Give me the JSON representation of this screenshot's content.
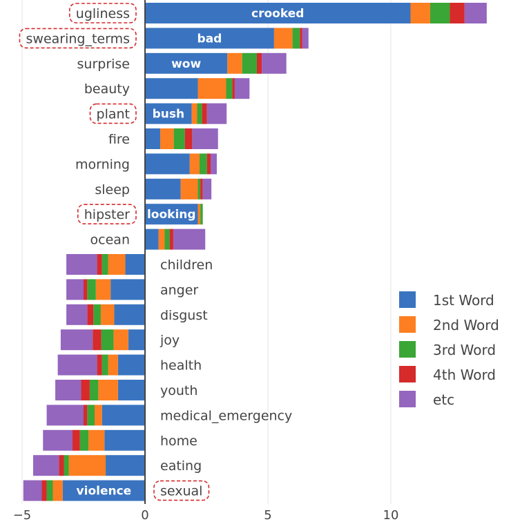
{
  "chart_data": {
    "type": "bar",
    "orientation": "horizontal",
    "stacked": true,
    "xlim": [
      -5,
      15
    ],
    "xticks": [
      "−5",
      "0",
      "5",
      "10"
    ],
    "xtick_values": [
      -5,
      0,
      5,
      10
    ],
    "grid": "vertical",
    "legend_position": "right",
    "categories": [
      "ugliness",
      "swearing_terms",
      "surprise",
      "beauty",
      "plant",
      "fire",
      "morning",
      "sleep",
      "hipster",
      "ocean",
      "children",
      "anger",
      "disgust",
      "joy",
      "health",
      "youth",
      "medical_emergency",
      "home",
      "eating",
      "sexual"
    ],
    "highlighted_categories": [
      "ugliness",
      "swearing_terms",
      "plant",
      "hipster",
      "sexual"
    ],
    "series": [
      {
        "name": "1st Word",
        "color": "#3a74c0",
        "values": [
          10.8,
          5.25,
          3.35,
          2.15,
          1.9,
          0.62,
          1.82,
          1.45,
          2.15,
          0.55,
          -0.8,
          -1.4,
          -1.25,
          -0.68,
          -1.1,
          -1.1,
          -1.75,
          -1.65,
          -1.6,
          -3.35
        ]
      },
      {
        "name": "2nd Word",
        "color": "#fd7f21",
        "values": [
          0.8,
          0.75,
          0.6,
          1.15,
          0.22,
          0.55,
          0.4,
          0.7,
          0.1,
          0.25,
          -0.7,
          -0.6,
          -0.55,
          -0.6,
          -0.4,
          -0.8,
          -0.3,
          -0.65,
          -1.5,
          -0.4
        ]
      },
      {
        "name": "3rd Word",
        "color": "#39a636",
        "values": [
          0.8,
          0.3,
          0.6,
          0.25,
          0.2,
          0.45,
          0.3,
          0.1,
          0.1,
          0.2,
          -0.25,
          -0.35,
          -0.3,
          -0.5,
          -0.25,
          -0.35,
          -0.3,
          -0.35,
          -0.2,
          -0.25
        ]
      },
      {
        "name": "4th Word",
        "color": "#d62a2b",
        "values": [
          0.6,
          0.1,
          0.2,
          0.1,
          0.2,
          0.3,
          0.15,
          0.1,
          0.0,
          0.15,
          -0.2,
          -0.15,
          -0.25,
          -0.35,
          -0.2,
          -0.35,
          -0.15,
          -0.3,
          -0.2,
          -0.2
        ]
      },
      {
        "name": "etc",
        "color": "#9466be",
        "values": [
          0.9,
          0.25,
          1.0,
          0.6,
          0.8,
          1.05,
          0.25,
          0.35,
          0.0,
          1.3,
          -1.25,
          -0.7,
          -0.85,
          -1.3,
          -1.6,
          -1.05,
          -1.5,
          -1.2,
          -1.05,
          -0.75
        ]
      }
    ],
    "bar_labels": [
      {
        "category": "ugliness",
        "text": "crooked"
      },
      {
        "category": "swearing_terms",
        "text": "bad"
      },
      {
        "category": "surprise",
        "text": "wow"
      },
      {
        "category": "plant",
        "text": "bush"
      },
      {
        "category": "hipster",
        "text": "looking"
      },
      {
        "category": "sexual",
        "text": "violence"
      }
    ]
  }
}
